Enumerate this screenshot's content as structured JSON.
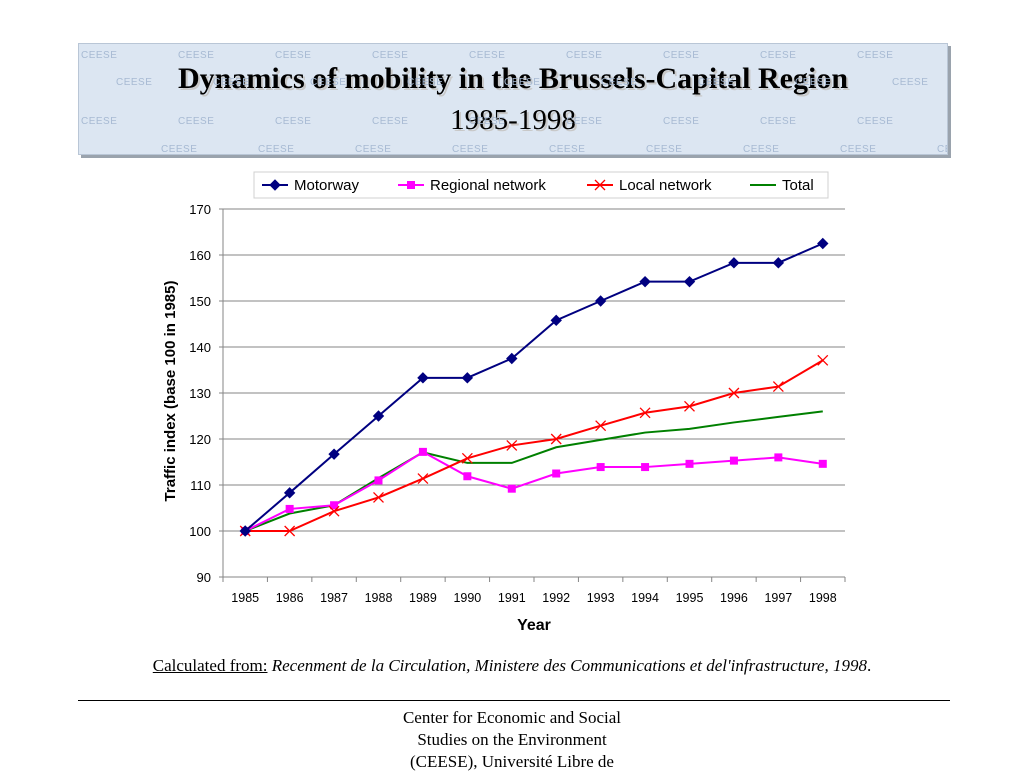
{
  "header": {
    "title": "Dynamics of mobility in the Brussels-Capital Region",
    "subtitle": "1985-1998",
    "watermark_text": "CEESE"
  },
  "chart_data": {
    "type": "line",
    "categories": [
      "1985",
      "1986",
      "1987",
      "1988",
      "1989",
      "1990",
      "1991",
      "1992",
      "1993",
      "1994",
      "1995",
      "1996",
      "1997",
      "1998"
    ],
    "xlabel": "Year",
    "ylabel": "Traffic index (base 100 in 1985)",
    "ylim": [
      90,
      170
    ],
    "yticks": [
      90,
      100,
      110,
      120,
      130,
      140,
      150,
      160,
      170
    ],
    "grid": "horizontal",
    "legend_position": "top",
    "series": [
      {
        "name": "Motorway",
        "color": "#000080",
        "marker": "diamond",
        "values": [
          100,
          108.3,
          116.7,
          125,
          133.3,
          133.3,
          137.5,
          145.8,
          150,
          154.2,
          154.2,
          158.3,
          158.3,
          162.5
        ]
      },
      {
        "name": "Regional network",
        "color": "#ff00ff",
        "marker": "square",
        "values": [
          100,
          104.8,
          105.6,
          111,
          117.2,
          111.9,
          109.2,
          112.5,
          113.9,
          113.9,
          114.6,
          115.3,
          116,
          114.6
        ]
      },
      {
        "name": "Local network",
        "color": "#ff0000",
        "marker": "x",
        "values": [
          100,
          100,
          104.3,
          107.3,
          111.4,
          115.8,
          118.6,
          120,
          122.9,
          125.7,
          127.1,
          130,
          131.4,
          137.1
        ]
      },
      {
        "name": "Total",
        "color": "#008000",
        "marker": "none",
        "values": [
          100,
          103.8,
          105.6,
          111.5,
          117.1,
          114.8,
          114.8,
          118.2,
          119.8,
          121.4,
          122.2,
          123.6,
          124.8,
          126
        ]
      }
    ]
  },
  "source": {
    "lead": "Calculated from:",
    "citation": "Recenment de la Circulation, Ministere des Communications et del'infrastructure, 1998",
    "end": "."
  },
  "footer": {
    "line1": "Center for Economic and Social",
    "line2": "Studies on the Environment",
    "line3": "(CEESE), Université Libre de"
  }
}
